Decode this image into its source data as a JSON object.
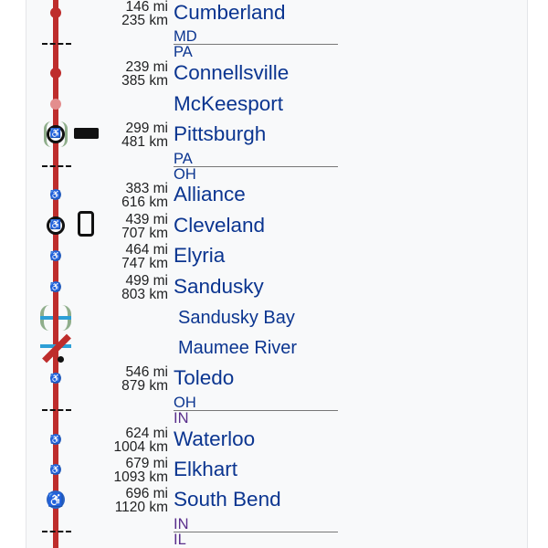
{
  "colors": {
    "line": "#be2d2c",
    "stop": "#be2d2c",
    "faded_stop": "#e38d8d",
    "accessible": "#2b63c4",
    "name": "#0b3590"
  },
  "stops": [
    {
      "name": "Cumberland",
      "mi": "146 mi",
      "km": "235 km",
      "marker": "stop"
    },
    {
      "name": "Connellsville",
      "mi": "239 mi",
      "km": "385 km",
      "marker": "stop"
    },
    {
      "name": "McKeesport",
      "marker": "faded"
    },
    {
      "name": "Pittsburgh",
      "mi": "299 mi",
      "km": "481 km",
      "marker": "major-accessible",
      "icon": "bus-icon"
    },
    {
      "name": "Alliance",
      "mi": "383 mi",
      "km": "616 km",
      "marker": "accessible"
    },
    {
      "name": "Cleveland",
      "mi": "439 mi",
      "km": "707 km",
      "marker": "major-accessible",
      "icon": "tram-icon"
    },
    {
      "name": "Elyria",
      "mi": "464 mi",
      "km": "747 km",
      "marker": "accessible"
    },
    {
      "name": "Sandusky",
      "mi": "499 mi",
      "km": "803 km",
      "marker": "accessible"
    },
    {
      "name": "Sandusky Bay",
      "marker": "bridge"
    },
    {
      "name": "Maumee River",
      "marker": "drawbridge"
    },
    {
      "name": "Toledo",
      "mi": "546 mi",
      "km": "879 km",
      "marker": "accessible"
    },
    {
      "name": "Waterloo",
      "mi": "624 mi",
      "km": "1004 km",
      "marker": "accessible"
    },
    {
      "name": "Elkhart",
      "mi": "679 mi",
      "km": "1093 km",
      "marker": "accessible"
    },
    {
      "name": "South Bend",
      "mi": "696 mi",
      "km": "1120 km",
      "marker": "accessible-large"
    }
  ],
  "borders": [
    {
      "above": "MD",
      "below": "PA"
    },
    {
      "above": "PA",
      "below": "OH"
    },
    {
      "above": "OH",
      "below": "IN"
    },
    {
      "above": "IN",
      "below": "IL"
    }
  ]
}
